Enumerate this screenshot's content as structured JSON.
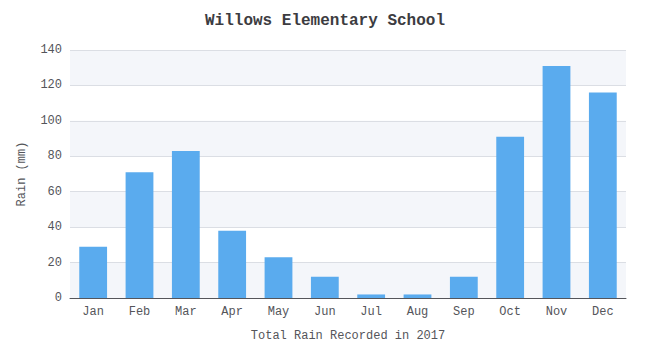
{
  "chart_data": {
    "type": "bar",
    "title": "Willows Elementary School",
    "xlabel": "Total Rain Recorded in 2017",
    "ylabel": "Rain (mm)",
    "categories": [
      "Jan",
      "Feb",
      "Mar",
      "Apr",
      "May",
      "Jun",
      "Jul",
      "Aug",
      "Sep",
      "Oct",
      "Nov",
      "Dec"
    ],
    "values": [
      29,
      71,
      83,
      38,
      23,
      12,
      2,
      2,
      12,
      91,
      131,
      116
    ],
    "color": "#5AABEE",
    "ylim": [
      0,
      140
    ],
    "yticks": [
      0,
      20,
      40,
      60,
      80,
      100,
      120,
      140
    ],
    "grid": true
  }
}
